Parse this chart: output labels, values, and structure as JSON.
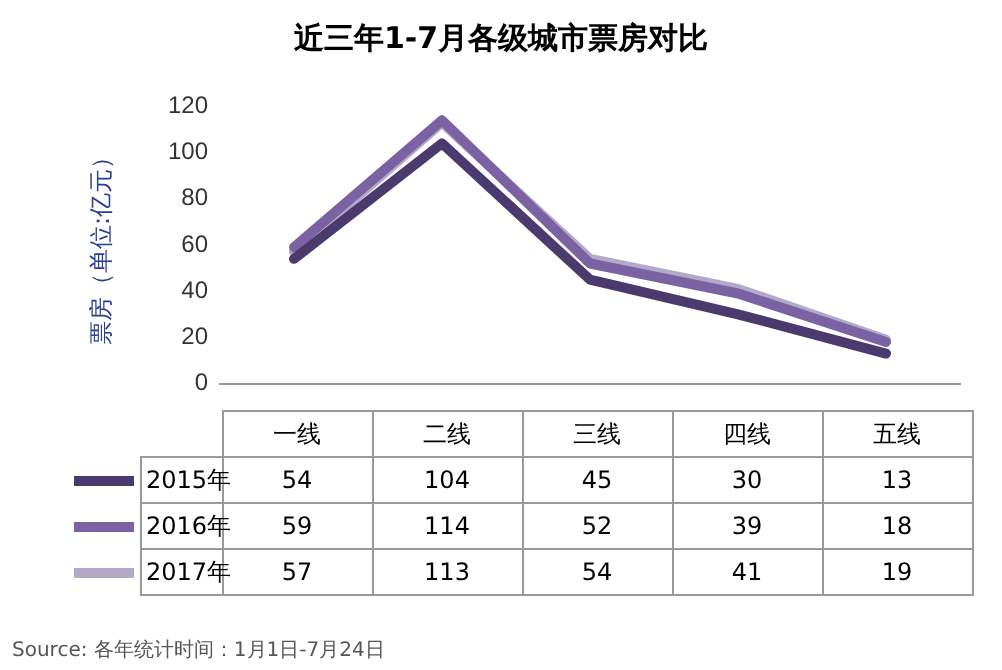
{
  "chart_data": {
    "type": "line",
    "title": "近三年1-7月各级城市票房对比",
    "ylabel": "票房（单位:亿元）",
    "categories": [
      "一线",
      "二线",
      "三线",
      "四线",
      "五线"
    ],
    "series": [
      {
        "name": "2015年",
        "color": "#4b3a6e",
        "values": [
          54,
          104,
          45,
          30,
          13
        ]
      },
      {
        "name": "2016年",
        "color": "#7b62a3",
        "values": [
          59,
          114,
          52,
          39,
          18
        ]
      },
      {
        "name": "2017年",
        "color": "#b3a8c8",
        "values": [
          57,
          113,
          54,
          41,
          19
        ]
      }
    ],
    "ylim": [
      0,
      120
    ],
    "yticks": [
      0,
      20,
      40,
      60,
      80,
      100,
      120
    ],
    "grid": false,
    "legend": "bottom",
    "marker": "none",
    "line_style": "solid",
    "data_labels": true,
    "annotations": [
      "Source: 各年统计时间：1月1日-7月24日"
    ]
  }
}
